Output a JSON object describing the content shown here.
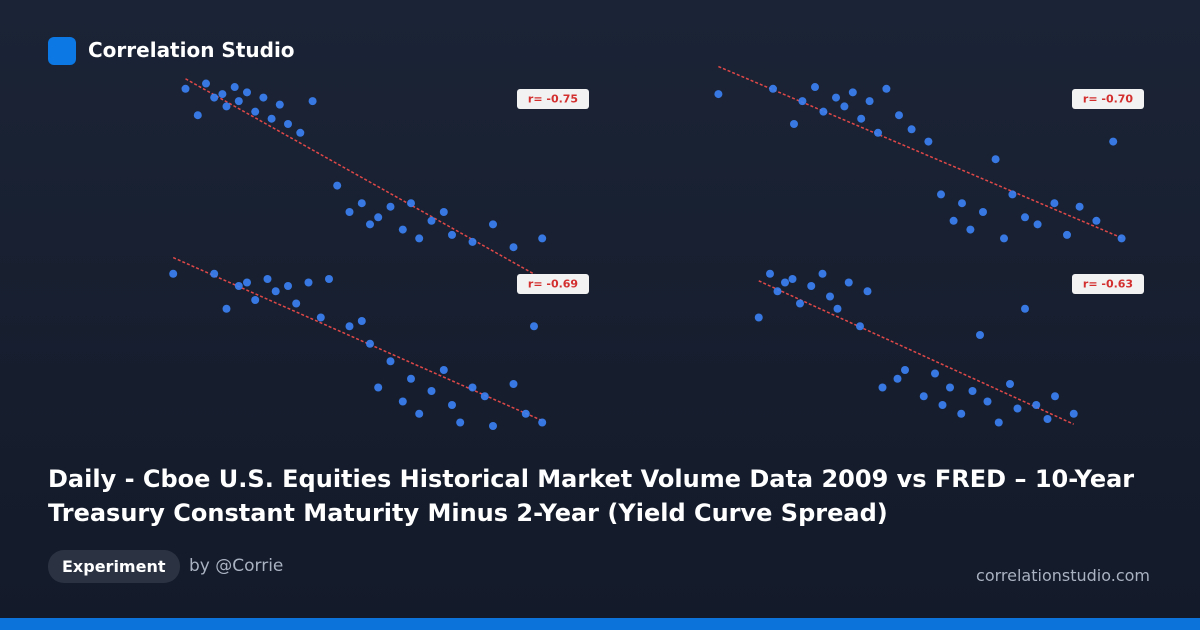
{
  "brand": "Correlation Studio",
  "title": "Daily - Cboe U.S. Equities Historical Market Volume Data 2009 vs FRED – 10-Year Treasury Constant Maturity Minus 2-Year (Yield Curve Spread)",
  "tag": "Experiment",
  "author": "by @Corrie",
  "site": "correlationstudio.com",
  "chart_data": [
    {
      "type": "scatter",
      "annotation": "r= -0.75",
      "color": "#3b82f6",
      "trendline": true,
      "xlim": [
        0,
        100
      ],
      "ylim": [
        0,
        100
      ],
      "x": [
        5,
        8,
        10,
        12,
        14,
        15,
        17,
        18,
        20,
        22,
        24,
        26,
        28,
        30,
        33,
        36,
        42,
        45,
        48,
        50,
        52,
        55,
        58,
        60,
        62,
        65,
        68,
        70,
        75,
        80,
        85,
        92
      ],
      "y": [
        95,
        80,
        98,
        90,
        92,
        85,
        96,
        88,
        93,
        82,
        90,
        78,
        86,
        75,
        70,
        88,
        40,
        25,
        30,
        18,
        22,
        28,
        15,
        30,
        10,
        20,
        25,
        12,
        8,
        18,
        5,
        10
      ]
    },
    {
      "type": "scatter",
      "annotation": "r= -0.70",
      "color": "#3b82f6",
      "trendline": true,
      "xlim": [
        0,
        100
      ],
      "ylim": [
        0,
        100
      ],
      "x": [
        2,
        15,
        20,
        22,
        25,
        27,
        30,
        32,
        34,
        36,
        38,
        40,
        42,
        45,
        48,
        52,
        55,
        58,
        60,
        62,
        65,
        68,
        70,
        72,
        75,
        78,
        82,
        85,
        88,
        92,
        96,
        98
      ],
      "y": [
        92,
        95,
        75,
        88,
        96,
        82,
        90,
        85,
        93,
        78,
        88,
        70,
        95,
        80,
        72,
        65,
        35,
        20,
        30,
        15,
        25,
        55,
        10,
        35,
        22,
        18,
        30,
        12,
        28,
        20,
        65,
        10
      ]
    },
    {
      "type": "scatter",
      "annotation": "r= -0.69",
      "color": "#3b82f6",
      "trendline": true,
      "xlim": [
        0,
        100
      ],
      "ylim": [
        0,
        100
      ],
      "x": [
        2,
        12,
        15,
        18,
        20,
        22,
        25,
        27,
        30,
        32,
        35,
        38,
        40,
        45,
        48,
        50,
        52,
        55,
        58,
        60,
        62,
        65,
        68,
        70,
        72,
        75,
        78,
        80,
        85,
        88,
        90,
        92
      ],
      "y": [
        95,
        95,
        75,
        88,
        90,
        80,
        92,
        85,
        88,
        78,
        90,
        70,
        92,
        65,
        68,
        55,
        30,
        45,
        22,
        35,
        15,
        28,
        40,
        20,
        10,
        30,
        25,
        8,
        32,
        15,
        65,
        10
      ]
    },
    {
      "type": "scatter",
      "annotation": "r= -0.63",
      "color": "#3b82f6",
      "trendline": true,
      "xlim": [
        0,
        100
      ],
      "ylim": [
        0,
        100
      ],
      "x": [
        1,
        4,
        6,
        8,
        10,
        12,
        15,
        18,
        20,
        22,
        25,
        28,
        30,
        34,
        38,
        40,
        45,
        48,
        50,
        52,
        55,
        58,
        60,
        62,
        65,
        68,
        70,
        72,
        75,
        78,
        80,
        85
      ],
      "y": [
        70,
        95,
        85,
        90,
        92,
        78,
        88,
        95,
        82,
        75,
        90,
        65,
        85,
        30,
        35,
        40,
        25,
        38,
        20,
        30,
        15,
        28,
        60,
        22,
        10,
        32,
        18,
        75,
        20,
        12,
        25,
        15
      ]
    }
  ]
}
